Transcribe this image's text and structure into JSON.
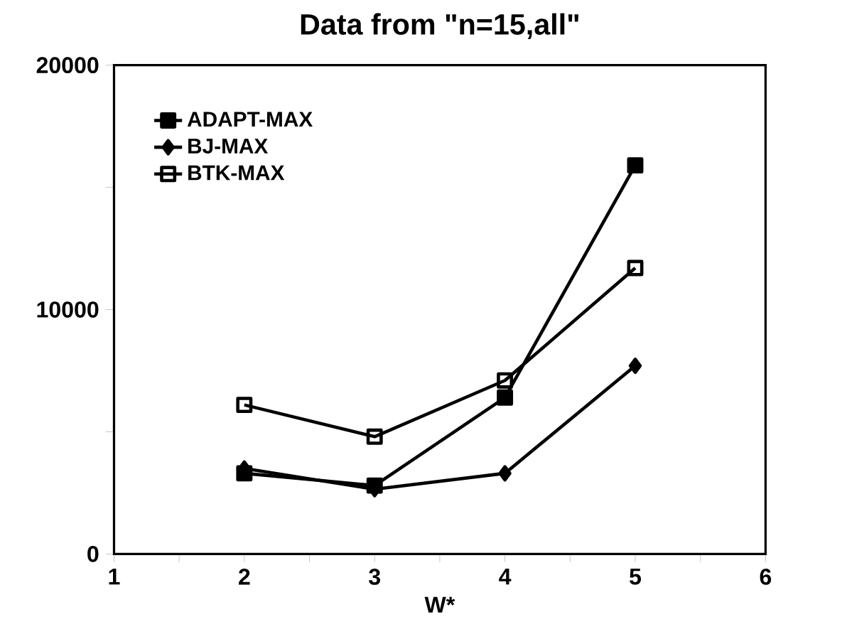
{
  "chart_data": {
    "type": "line",
    "title": "Data from \"n=15,all\"",
    "xlabel": "W*",
    "xlim": [
      1,
      6
    ],
    "ylim": [
      0,
      20000
    ],
    "xticks": [
      1,
      {
        "value": 1.5,
        "label": null
      },
      2,
      {
        "value": 2.5,
        "label": null
      },
      3,
      {
        "value": 3.5,
        "label": null
      },
      4,
      {
        "value": 4.5,
        "label": null
      },
      5,
      {
        "value": 5.5,
        "label": null
      },
      6
    ],
    "yticks": [
      0,
      {
        "value": 5000,
        "label": null
      },
      10000,
      {
        "value": 15000,
        "label": null
      },
      20000
    ],
    "x": [
      2,
      3,
      4,
      5
    ],
    "legend": "top left",
    "grid": false,
    "line_style": "solid",
    "series": [
      {
        "name": "ADAPT-MAX",
        "color": "#000000",
        "marker": "square",
        "values": [
          3300,
          2800,
          6400,
          15900
        ]
      },
      {
        "name": "BJ-MAX",
        "color": "#000000",
        "marker": "diamond",
        "values": [
          3500,
          2650,
          3300,
          7700
        ]
      },
      {
        "name": "BTK-MAX",
        "color": "#000000",
        "marker": "square",
        "values": [
          6100,
          4800,
          7100,
          11700
        ]
      }
    ]
  }
}
